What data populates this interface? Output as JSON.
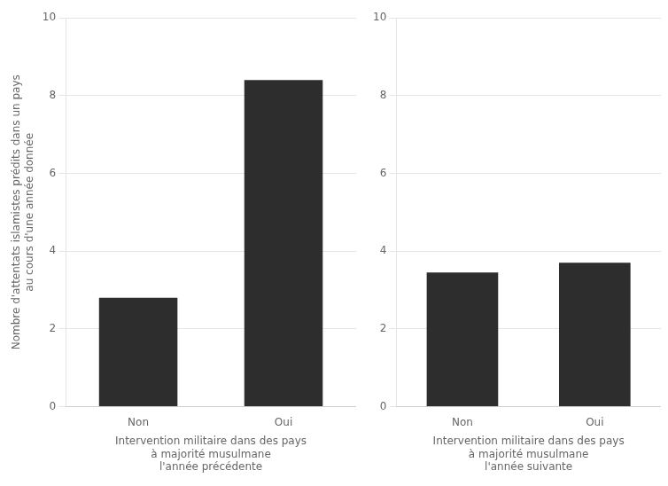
{
  "chart_data": [
    {
      "type": "bar",
      "categories": [
        "Non",
        "Oui"
      ],
      "values": [
        2.8,
        8.4
      ],
      "color": "#2d2d2d",
      "xlabel": "Intervention militaire dans des pays\nà majorité musulmane\nl'année précédente",
      "ylabel": "Nombre d'attentats islamistes prédits dans un pays\nau cours d'une année donnée",
      "ylim": [
        0,
        10
      ],
      "yticks": [
        0,
        2,
        4,
        6,
        8,
        10
      ],
      "grid": true
    },
    {
      "type": "bar",
      "categories": [
        "Non",
        "Oui"
      ],
      "values": [
        3.45,
        3.7
      ],
      "color": "#2d2d2d",
      "xlabel": "Intervention militaire dans des pays\nà majorité musulmane\nl'année suivante",
      "ylim": [
        0,
        10
      ],
      "yticks": [
        0,
        2,
        4,
        6,
        8,
        10
      ],
      "grid": true
    }
  ]
}
